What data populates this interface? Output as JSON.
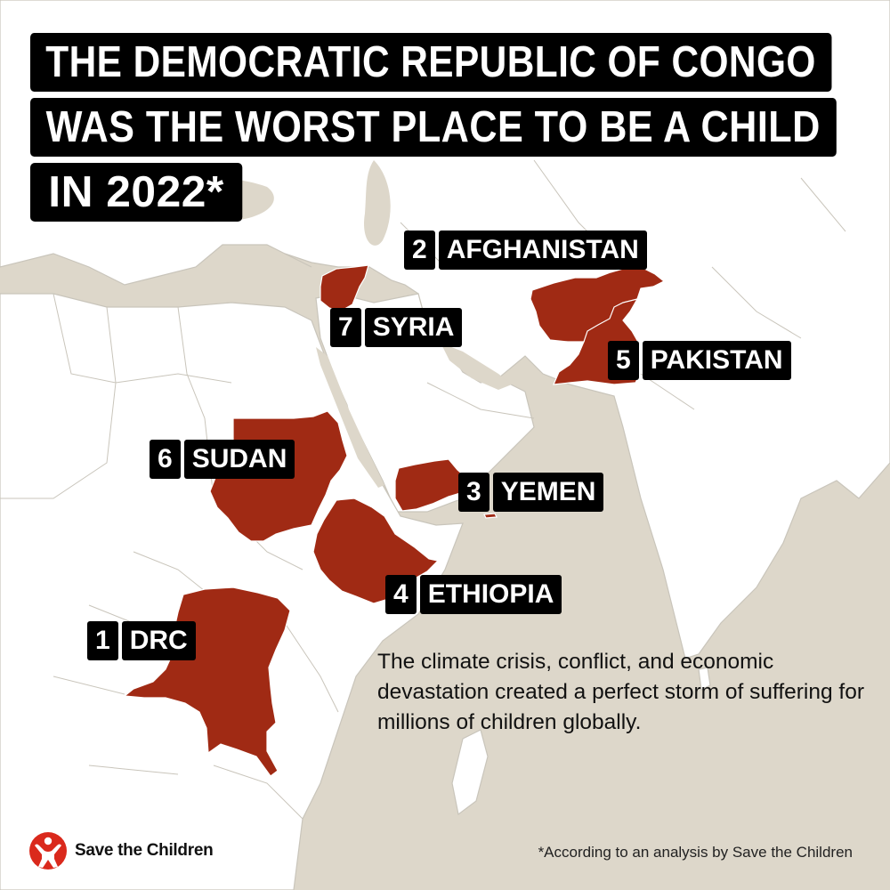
{
  "title": {
    "lines": [
      "THE DEMOCRATIC REPUBLIC OF CONGO",
      "WAS THE WORST PLACE TO BE A CHILD",
      "IN 2022*"
    ]
  },
  "labels": {
    "afghanistan": {
      "rank": "2",
      "name": "AFGHANISTAN"
    },
    "syria": {
      "rank": "7",
      "name": "SYRIA"
    },
    "pakistan": {
      "rank": "5",
      "name": "PAKISTAN"
    },
    "sudan": {
      "rank": "6",
      "name": "SUDAN"
    },
    "yemen": {
      "rank": "3",
      "name": "YEMEN"
    },
    "ethiopia": {
      "rank": "4",
      "name": "ETHIOPIA"
    },
    "drc": {
      "rank": "1",
      "name": "DRC"
    }
  },
  "body_text": "The climate crisis, conflict, and economic devastation created a perfect storm of suffering for millions of children globally.",
  "footnote": "*According to an analysis by Save the Children",
  "brand": {
    "name": "Save the Children",
    "icon": "save-the-children-logo"
  },
  "colors": {
    "highlight": "#a02a14",
    "sea": "#ddd7ca",
    "land": "#ffffff",
    "label_bg": "#000000",
    "label_text": "#ffffff",
    "brand_red": "#da291c"
  }
}
